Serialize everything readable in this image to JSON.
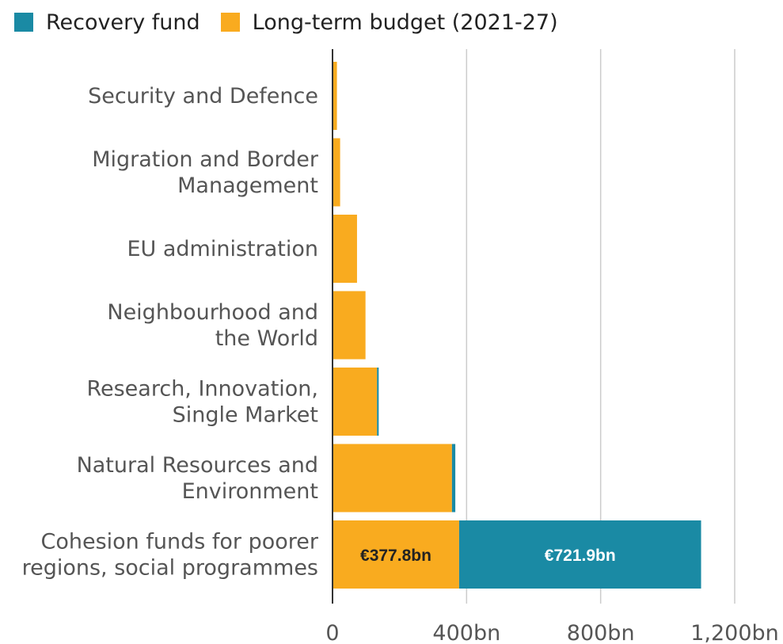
{
  "legend": {
    "items": [
      {
        "label": "Recovery fund",
        "color": "#1a8aa4"
      },
      {
        "label": "Long-term budget (2021-27)",
        "color": "#f9ab1f"
      }
    ]
  },
  "chart_data": {
    "type": "bar",
    "orientation": "horizontal",
    "stacked": true,
    "categories": [
      [
        "Security and Defence"
      ],
      [
        "Migration and Border",
        "Management"
      ],
      [
        "EU administration"
      ],
      [
        "Neighbourhood and",
        "the World"
      ],
      [
        "Research, Innovation,",
        "Single Market"
      ],
      [
        "Natural Resources and",
        "Environment"
      ],
      [
        "Cohesion funds for poorer",
        "regions, social programmes"
      ]
    ],
    "series": [
      {
        "name": "Long-term budget (2021-27)",
        "color": "#f9ab1f",
        "values": [
          13.2,
          22.7,
          73.1,
          98.4,
          132.8,
          356.4,
          377.8
        ]
      },
      {
        "name": "Recovery fund",
        "color": "#1a8aa4",
        "values": [
          0,
          0,
          0,
          0,
          5.0,
          10.0,
          721.9
        ]
      }
    ],
    "data_labels": [
      {
        "category_index": 6,
        "series_index": 0,
        "text": "€377.8bn",
        "color": "#222222"
      },
      {
        "category_index": 6,
        "series_index": 1,
        "text": "€721.9bn",
        "color": "#ffffff"
      }
    ],
    "xlim": [
      0,
      1200
    ],
    "xticks": [
      0,
      400,
      800,
      1200
    ],
    "xtick_labels": [
      "0",
      "400bn",
      "800bn",
      "1,200bn"
    ],
    "grid": true,
    "legend_position": "top-left"
  }
}
